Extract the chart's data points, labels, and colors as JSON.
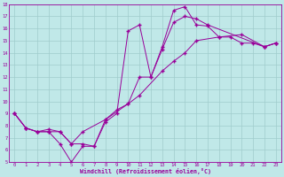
{
  "xlabel": "Windchill (Refroidissement éolien,°C)",
  "xlim": [
    -0.5,
    23.5
  ],
  "ylim": [
    5,
    18
  ],
  "xticks": [
    0,
    1,
    2,
    3,
    4,
    5,
    6,
    7,
    8,
    9,
    10,
    11,
    12,
    13,
    14,
    15,
    16,
    17,
    18,
    19,
    20,
    21,
    22,
    23
  ],
  "yticks": [
    5,
    6,
    7,
    8,
    9,
    10,
    11,
    12,
    13,
    14,
    15,
    16,
    17,
    18
  ],
  "bg_color": "#c0e8e8",
  "line_color": "#990099",
  "grid_color": "#a0cccc",
  "line1_x": [
    0,
    1,
    2,
    3,
    4,
    5,
    6,
    7,
    8,
    9,
    10,
    11,
    12,
    13,
    14,
    15,
    16,
    17,
    22,
    23
  ],
  "line1_y": [
    9.0,
    7.8,
    7.5,
    7.7,
    7.5,
    6.5,
    6.5,
    6.3,
    8.5,
    9.3,
    9.8,
    12.0,
    12.0,
    14.3,
    16.5,
    17.0,
    16.8,
    16.3,
    14.5,
    14.8
  ],
  "line2_x": [
    0,
    1,
    2,
    3,
    4,
    5,
    6,
    7,
    8,
    9,
    10,
    11,
    12,
    13,
    14,
    15,
    16,
    17,
    18,
    19,
    20,
    21,
    22,
    23
  ],
  "line2_y": [
    9.0,
    7.8,
    7.5,
    7.5,
    6.5,
    5.0,
    6.3,
    6.3,
    8.3,
    9.0,
    15.8,
    16.3,
    12.0,
    14.5,
    17.5,
    17.8,
    16.3,
    16.2,
    15.3,
    15.3,
    14.8,
    14.8,
    14.5,
    14.8
  ],
  "line3_x": [
    0,
    1,
    2,
    3,
    4,
    5,
    6,
    8,
    10,
    11,
    13,
    14,
    15,
    16,
    18,
    20,
    22,
    23
  ],
  "line3_y": [
    9.0,
    7.8,
    7.5,
    7.5,
    7.5,
    6.5,
    7.5,
    8.5,
    9.8,
    10.5,
    12.5,
    13.3,
    14.0,
    15.0,
    15.3,
    15.5,
    14.5,
    14.8
  ]
}
